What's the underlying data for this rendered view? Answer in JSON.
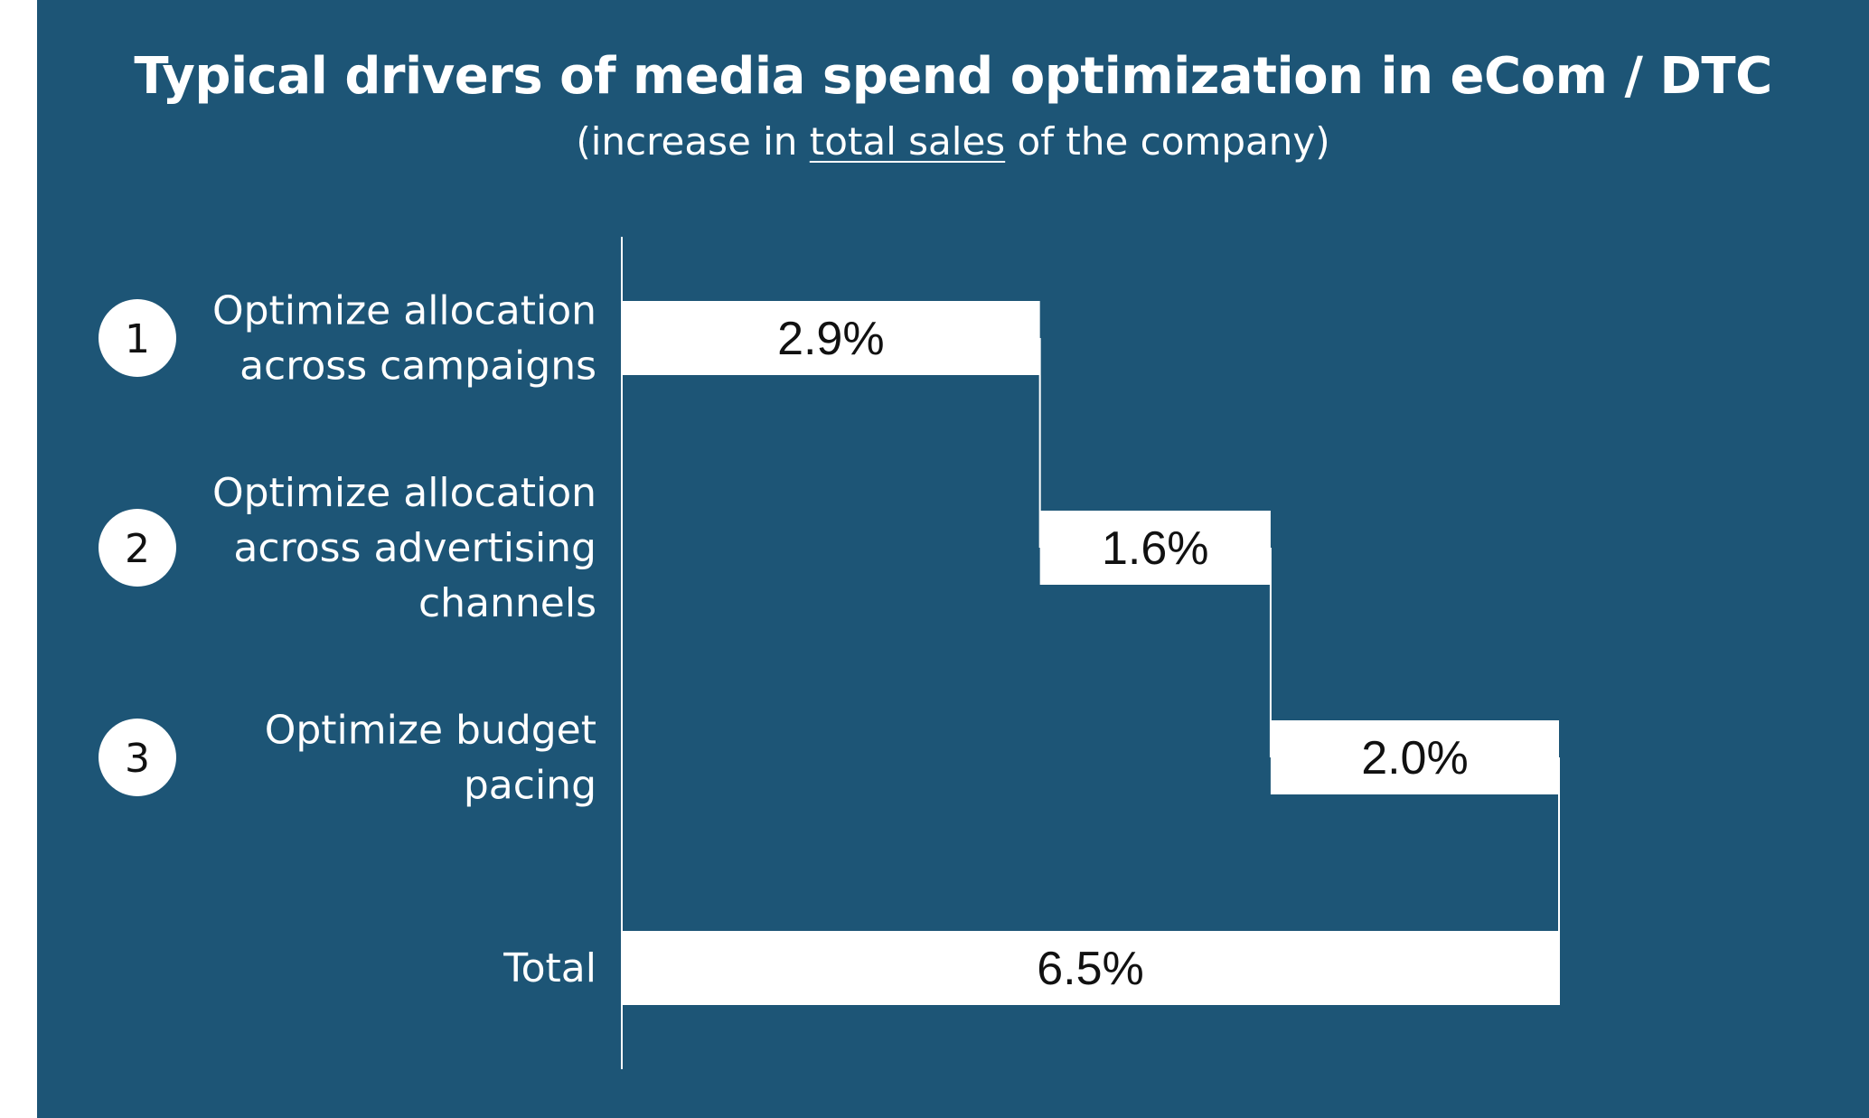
{
  "header": {
    "title": "Typical drivers of media spend optimization in eCom / DTC",
    "subtitle_pre": "(increase in ",
    "subtitle_underlined": "total sales",
    "subtitle_post": " of the company)"
  },
  "colors": {
    "background": "#1d5576",
    "bar": "#ffffff",
    "axis": "#ffffff",
    "text": "#ffffff",
    "value_text": "#111111"
  },
  "chart_data": {
    "type": "bar",
    "subtype": "waterfall",
    "orientation": "horizontal",
    "title": "Typical drivers of media spend optimization in eCom / DTC",
    "subtitle": "(increase in total sales of the company)",
    "unit": "%",
    "xlim": [
      0,
      6.5
    ],
    "grid": false,
    "items": [
      {
        "number": "1",
        "label_lines": [
          "Optimize allocation",
          "across campaigns"
        ],
        "value": 2.9,
        "value_label": "2.9%",
        "is_total": false
      },
      {
        "number": "2",
        "label_lines": [
          "Optimize allocation",
          "across advertising",
          "channels"
        ],
        "value": 1.6,
        "value_label": "1.6%",
        "is_total": false
      },
      {
        "number": "3",
        "label_lines": [
          "Optimize budget",
          "pacing"
        ],
        "value": 2.0,
        "value_label": "2.0%",
        "is_total": false
      },
      {
        "number": "",
        "label_lines": [
          "Total"
        ],
        "value": 6.5,
        "value_label": "6.5%",
        "is_total": true
      }
    ]
  }
}
